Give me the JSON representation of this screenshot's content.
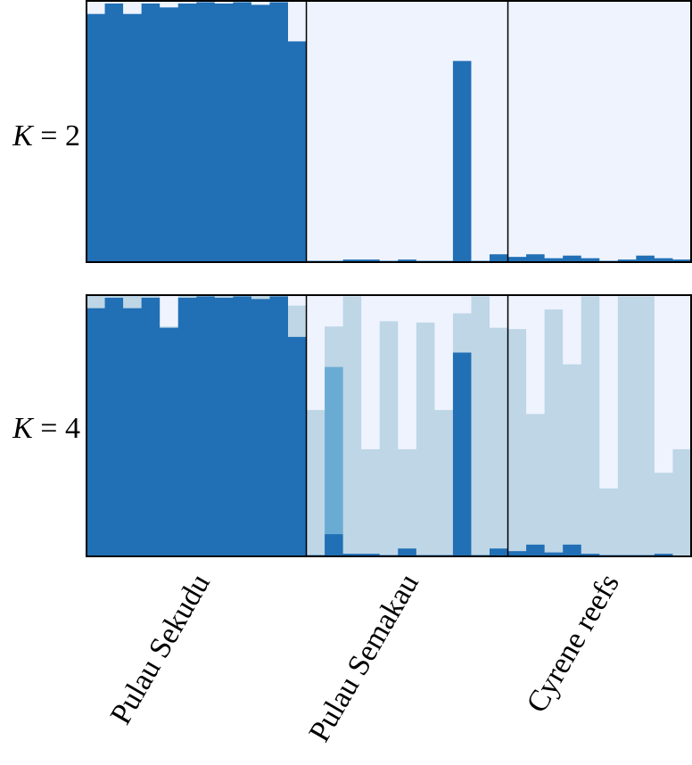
{
  "chart_data": {
    "type": "stacked-bar",
    "colors": [
      "#eef3fe",
      "#bed6e6",
      "#6aabd4",
      "#216fb5"
    ],
    "populations": [
      "Pulau Sekudu",
      "Pulau Semakau",
      "Cyrene reefs"
    ],
    "population_sizes": [
      12,
      11,
      10
    ],
    "panels": [
      {
        "k_label": "K",
        "k_value": "2",
        "bars": [
          [
            0.05,
            0,
            0,
            0.95
          ],
          [
            0.01,
            0,
            0,
            0.99
          ],
          [
            0.05,
            0,
            0,
            0.95
          ],
          [
            0.01,
            0,
            0,
            0.99
          ],
          [
            0.025,
            0,
            0,
            0.975
          ],
          [
            0.01,
            0,
            0,
            0.99
          ],
          [
            0.005,
            0,
            0,
            0.995
          ],
          [
            0.01,
            0,
            0,
            0.99
          ],
          [
            0.005,
            0,
            0,
            0.995
          ],
          [
            0.015,
            0,
            0,
            0.985
          ],
          [
            0.005,
            0,
            0,
            0.995
          ],
          [
            0.155,
            0,
            0,
            0.845
          ],
          [
            0.995,
            0,
            0,
            0.005
          ],
          [
            0.995,
            0,
            0,
            0.005
          ],
          [
            0.99,
            0,
            0,
            0.01
          ],
          [
            0.99,
            0,
            0,
            0.01
          ],
          [
            0.995,
            0,
            0,
            0.005
          ],
          [
            0.99,
            0,
            0,
            0.01
          ],
          [
            0.995,
            0,
            0,
            0.005
          ],
          [
            0.995,
            0,
            0,
            0.005
          ],
          [
            0.23,
            0,
            0,
            0.77
          ],
          [
            0.995,
            0,
            0,
            0.005
          ],
          [
            0.97,
            0,
            0,
            0.03
          ],
          [
            0.98,
            0,
            0,
            0.02
          ],
          [
            0.97,
            0,
            0,
            0.03
          ],
          [
            0.985,
            0,
            0,
            0.015
          ],
          [
            0.975,
            0,
            0,
            0.025
          ],
          [
            0.985,
            0,
            0,
            0.015
          ],
          [
            0.995,
            0,
            0,
            0.005
          ],
          [
            0.99,
            0,
            0,
            0.01
          ],
          [
            0.975,
            0,
            0,
            0.025
          ],
          [
            0.985,
            0,
            0,
            0.015
          ],
          [
            0.99,
            0,
            0,
            0.01
          ]
        ]
      },
      {
        "k_label": "K",
        "k_value": "4",
        "bars": [
          [
            0,
            0.05,
            0,
            0.95
          ],
          [
            0,
            0.01,
            0,
            0.99
          ],
          [
            0,
            0.05,
            0,
            0.95
          ],
          [
            0,
            0.01,
            0,
            0.99
          ],
          [
            0.12,
            0.005,
            0,
            0.875
          ],
          [
            0,
            0.01,
            0,
            0.99
          ],
          [
            0,
            0.005,
            0,
            0.995
          ],
          [
            0,
            0.01,
            0,
            0.99
          ],
          [
            0,
            0.005,
            0,
            0.995
          ],
          [
            0,
            0.015,
            0,
            0.985
          ],
          [
            0,
            0.005,
            0,
            0.995
          ],
          [
            0.04,
            0.12,
            0,
            0.84
          ],
          [
            0.44,
            0.555,
            0,
            0.005
          ],
          [
            0.12,
            0.155,
            0.64,
            0.085
          ],
          [
            0.005,
            0.985,
            0,
            0.01
          ],
          [
            0.59,
            0.4,
            0,
            0.01
          ],
          [
            0.1,
            0.895,
            0,
            0.005
          ],
          [
            0.59,
            0.38,
            0,
            0.03
          ],
          [
            0.105,
            0.89,
            0,
            0.005
          ],
          [
            0.44,
            0.555,
            0,
            0.005
          ],
          [
            0.07,
            0.15,
            0,
            0.78
          ],
          [
            0.005,
            0.99,
            0,
            0.005
          ],
          [
            0.125,
            0.845,
            0,
            0.03
          ],
          [
            0.13,
            0.85,
            0,
            0.02
          ],
          [
            0.455,
            0.5,
            0,
            0.045
          ],
          [
            0.055,
            0.93,
            0,
            0.015
          ],
          [
            0.265,
            0.69,
            0,
            0.045
          ],
          [
            0.005,
            0.985,
            0,
            0.01
          ],
          [
            0.74,
            0.255,
            0,
            0.005
          ],
          [
            0.005,
            0.99,
            0,
            0.005
          ],
          [
            0.005,
            0.99,
            0,
            0.005
          ],
          [
            0.68,
            0.31,
            0,
            0.01
          ],
          [
            0.59,
            0.41,
            0,
            0
          ]
        ]
      }
    ]
  }
}
